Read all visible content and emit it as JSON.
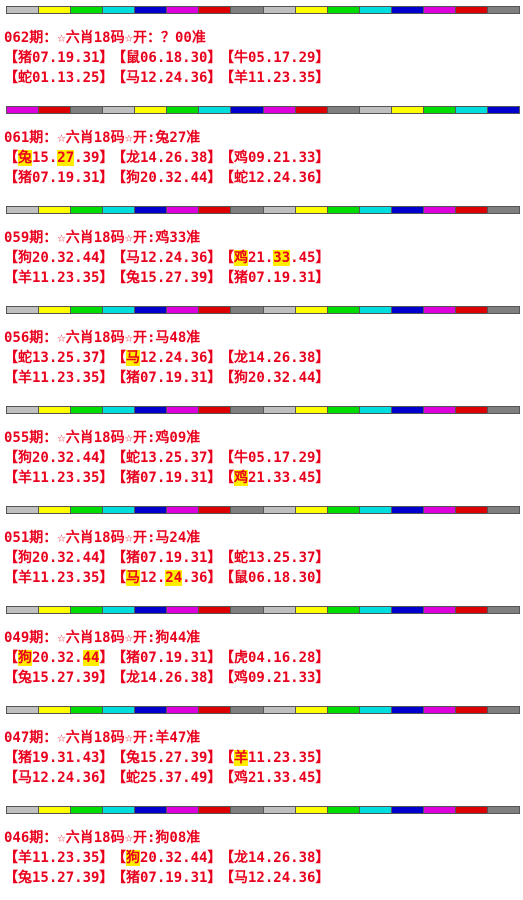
{
  "records": [
    {
      "title": "062期：☆六肖18码☆开：？00准",
      "rows": [
        [
          [
            "【猪07.19.31】"
          ],
          [
            "【鼠06.18.30】"
          ],
          [
            "【牛05.17.29】"
          ]
        ],
        [
          [
            "【蛇01.13.25】"
          ],
          [
            "【马12.24.36】"
          ],
          [
            "【羊11.23.35】"
          ]
        ]
      ]
    },
    {
      "title": "061期：☆六肖18码☆开:兔27准",
      "rows": [
        [
          [
            "【",
            {
              "text": "兔",
              "highlight": true
            },
            "15.",
            {
              "text": "27",
              "highlight": true
            },
            ".39】"
          ],
          [
            "【龙14.26.38】"
          ],
          [
            "【鸡09.21.33】"
          ]
        ],
        [
          [
            "【猪07.19.31】"
          ],
          [
            "【狗20.32.44】"
          ],
          [
            "【蛇12.24.36】"
          ]
        ]
      ]
    },
    {
      "title": "059期：☆六肖18码☆开:鸡33准",
      "rows": [
        [
          [
            "【狗20.32.44】"
          ],
          [
            "【马12.24.36】"
          ],
          [
            "【",
            {
              "text": "鸡",
              "highlight": true
            },
            "21.",
            {
              "text": "33",
              "highlight": true
            },
            ".45】"
          ]
        ],
        [
          [
            "【羊11.23.35】"
          ],
          [
            "【兔15.27.39】"
          ],
          [
            "【猪07.19.31】"
          ]
        ]
      ]
    },
    {
      "title": "056期：☆六肖18码☆开:马48准",
      "rows": [
        [
          [
            "【蛇13.25.37】"
          ],
          [
            "【",
            {
              "text": "马",
              "highlight": true
            },
            "12.24.36】"
          ],
          [
            "【龙14.26.38】"
          ]
        ],
        [
          [
            "【羊11.23.35】"
          ],
          [
            "【猪07.19.31】"
          ],
          [
            "【狗20.32.44】"
          ]
        ]
      ]
    },
    {
      "title": "055期：☆六肖18码☆开:鸡09准",
      "rows": [
        [
          [
            "【狗20.32.44】"
          ],
          [
            "【蛇13.25.37】"
          ],
          [
            "【牛05.17.29】"
          ]
        ],
        [
          [
            "【羊11.23.35】"
          ],
          [
            "【猪07.19.31】"
          ],
          [
            "【",
            {
              "text": "鸡",
              "highlight": true
            },
            "21.33.45】"
          ]
        ]
      ]
    },
    {
      "title": "051期：☆六肖18码☆开:马24准",
      "rows": [
        [
          [
            "【狗20.32.44】"
          ],
          [
            "【猪07.19.31】"
          ],
          [
            "【蛇13.25.37】"
          ]
        ],
        [
          [
            "【羊11.23.35】"
          ],
          [
            "【",
            {
              "text": "马",
              "highlight": true
            },
            "12.",
            {
              "text": "24",
              "highlight": true
            },
            ".36】"
          ],
          [
            "【鼠06.18.30】"
          ]
        ]
      ]
    },
    {
      "title": "049期：☆六肖18码☆开:狗44准",
      "rows": [
        [
          [
            "【",
            {
              "text": "狗",
              "highlight": true
            },
            "20.32.",
            {
              "text": "44",
              "highlight": true
            },
            "】"
          ],
          [
            "【猪07.19.31】"
          ],
          [
            "【虎04.16.28】"
          ]
        ],
        [
          [
            "【兔15.27.39】"
          ],
          [
            "【龙14.26.38】"
          ],
          [
            "【鸡09.21.33】"
          ]
        ]
      ]
    },
    {
      "title": "047期：☆六肖18码☆开:羊47准",
      "rows": [
        [
          [
            "【猪19.31.43】"
          ],
          [
            "【兔15.27.39】"
          ],
          [
            "【",
            {
              "text": "羊",
              "highlight": true
            },
            "11.23.35】"
          ]
        ],
        [
          [
            "【马12.24.36】"
          ],
          [
            "【蛇25.37.49】"
          ],
          [
            "【鸡21.33.45】"
          ]
        ]
      ]
    },
    {
      "title": "046期：☆六肖18码☆开:狗08准",
      "rows": [
        [
          [
            "【羊11.23.35】"
          ],
          [
            "【",
            {
              "text": "狗",
              "highlight": true
            },
            "20.32.44】"
          ],
          [
            "【龙14.26.38】"
          ]
        ],
        [
          [
            "【兔15.27.39】"
          ],
          [
            "【猪07.19.31】"
          ],
          [
            "【马12.24.36】"
          ]
        ]
      ]
    }
  ]
}
